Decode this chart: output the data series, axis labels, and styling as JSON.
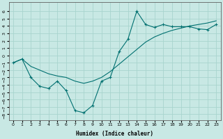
{
  "xlabel": "Humidex (Indice chaleur)",
  "background_color": "#c8e8e4",
  "grid_color": "#a8d4ce",
  "line_color": "#007070",
  "xlim": [
    -0.5,
    23.5
  ],
  "ylim": [
    -8.8,
    7.2
  ],
  "x_ticks": [
    0,
    1,
    2,
    3,
    4,
    5,
    6,
    7,
    8,
    9,
    10,
    11,
    12,
    13,
    14,
    15,
    16,
    17,
    18,
    19,
    20,
    21,
    22,
    23
  ],
  "y_ticks": [
    6,
    5,
    4,
    3,
    2,
    1,
    0,
    -1,
    -2,
    -3,
    -4,
    -5,
    -6,
    -7,
    -8
  ],
  "line1_x": [
    0,
    1,
    2,
    3,
    4,
    5,
    6,
    7,
    8,
    9,
    10,
    11,
    12,
    13,
    14,
    15,
    16,
    17,
    18,
    19,
    20,
    21,
    22,
    23
  ],
  "line1_y": [
    -1.0,
    -0.5,
    -3.0,
    -4.2,
    -4.5,
    -3.5,
    -4.8,
    -7.5,
    -7.8,
    -6.8,
    -3.5,
    -3.0,
    0.5,
    2.2,
    6.0,
    4.2,
    3.8,
    4.2,
    3.9,
    3.9,
    3.9,
    3.6,
    3.5,
    4.2
  ],
  "line2_x": [
    0,
    1,
    2,
    3,
    4,
    5,
    6,
    7,
    8,
    9,
    10,
    11,
    12,
    13,
    14,
    15,
    16,
    17,
    18,
    19,
    20,
    21,
    22,
    23
  ],
  "line2_y": [
    -1.0,
    -0.5,
    -1.5,
    -2.0,
    -2.5,
    -2.8,
    -3.0,
    -3.5,
    -3.8,
    -3.5,
    -3.0,
    -2.2,
    -1.2,
    -0.2,
    0.8,
    1.8,
    2.5,
    3.0,
    3.4,
    3.7,
    4.0,
    4.2,
    4.4,
    4.7
  ]
}
